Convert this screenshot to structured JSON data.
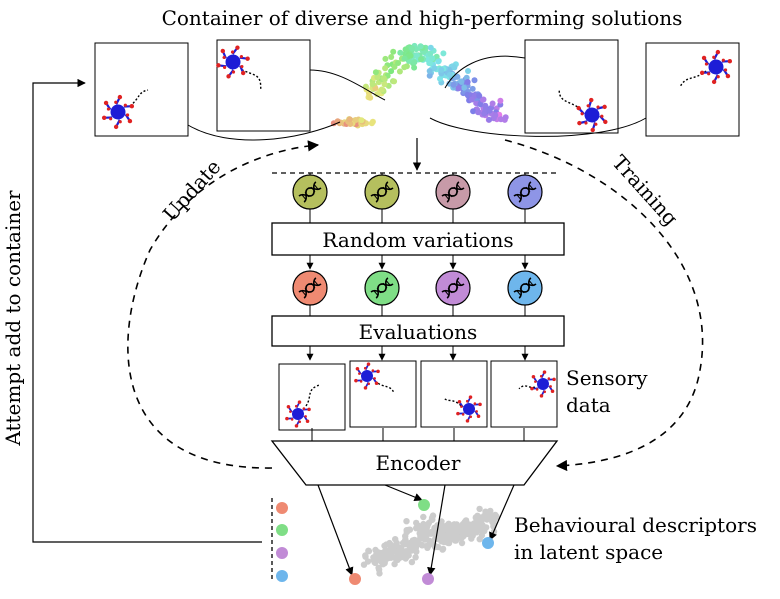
{
  "title": "Container of diverse and high-performing solutions",
  "labels": {
    "update": "Update",
    "training": "Training",
    "attempt": "Attempt add to container",
    "random_variations": "Random variations",
    "evaluations": "Evaluations",
    "encoder": "Encoder",
    "sensory_line1": "Sensory",
    "sensory_line2": "data",
    "descriptors_line1": "Behavioural descriptors",
    "descriptors_line2": "in latent space"
  },
  "colors": {
    "parent_genomes": [
      "#b5bf5e",
      "#b5bf5e",
      "#c79aa8",
      "#8e95e6"
    ],
    "offspring_genomes": [
      "#ef8a72",
      "#7fde86",
      "#c18bd6",
      "#6eb6ec"
    ],
    "robot_body": "#1d1dd6",
    "robot_legs": "#e02222",
    "latent_points": "#cccccc",
    "arrows": "#000000"
  },
  "icons": {
    "genome": "dna-icon",
    "robot": "hexapod-robot-icon"
  }
}
